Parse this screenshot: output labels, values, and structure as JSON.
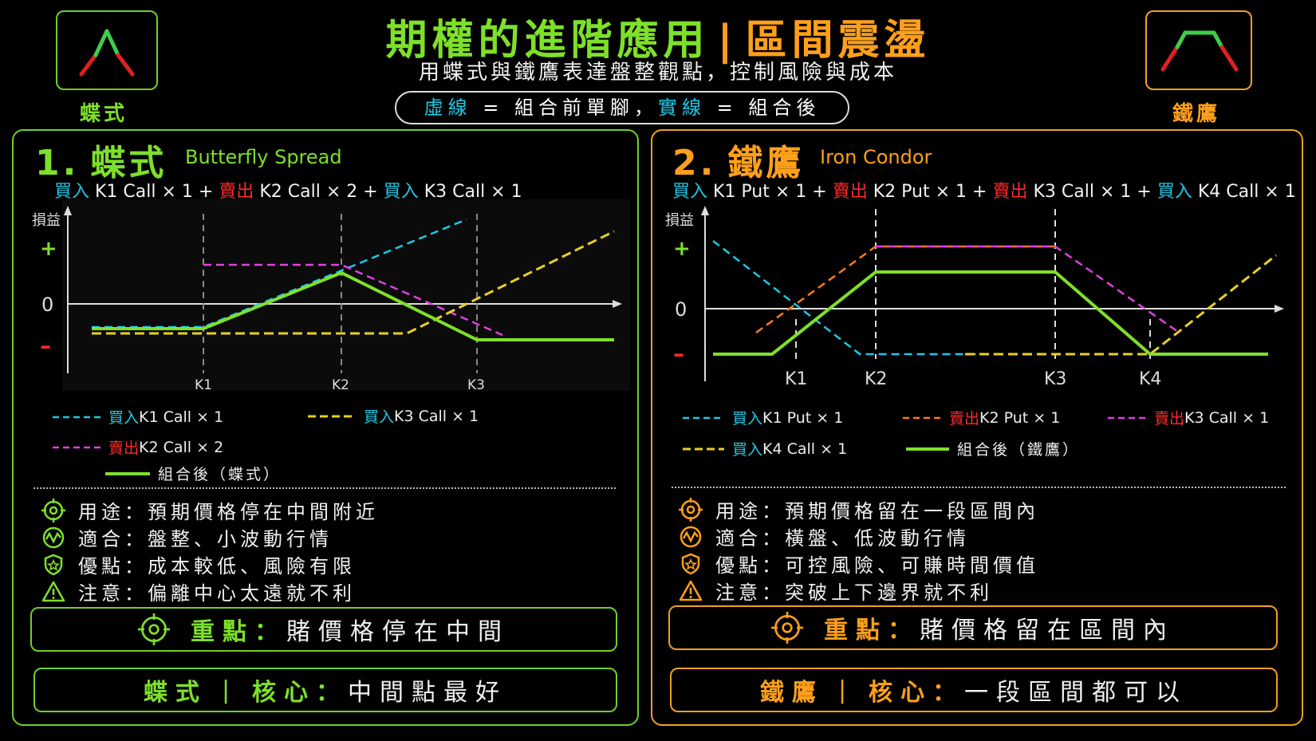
{
  "header": {
    "title_part1": "期權的進階應用",
    "title_sep": "|",
    "title_part2": "區間震盪",
    "subtitle": "用蝶式與鐵鷹表達盤整觀點，控制風險與成本",
    "legend_dashed": "虛線",
    "legend_mid": " = 組合前單腳，",
    "legend_solid": "實線",
    "legend_end": " = 組合後",
    "left_icon_label": "蝶式",
    "right_icon_label": "鐵鷹"
  },
  "colors": {
    "green": "#7ee02a",
    "orange": "#ff9f1a",
    "cyan": "#1ec8e6",
    "red": "#ff2a2a",
    "magenta": "#e040e0",
    "yellow": "#e8d020",
    "dash_orange": "#ff7a1a"
  },
  "butterfly": {
    "number": "1.",
    "title": "蝶式",
    "title_en": "Butterfly Spread",
    "formula": [
      {
        "action": "買入",
        "text": " K1 Call × 1 ",
        "op": "+"
      },
      {
        "action": "賣出",
        "text": " K2 Call × 2 ",
        "op": "+"
      },
      {
        "action": "買入",
        "text": " K3 Call × 1",
        "op": ""
      }
    ],
    "chart": {
      "y_label": "損益",
      "plus": "+",
      "zero": "0",
      "minus": "–",
      "strikes": [
        "K1",
        "K2",
        "K3"
      ]
    },
    "legend": [
      {
        "action": "買入",
        "text": " K1 Call × 1"
      },
      {
        "action": "買入",
        "text": " K3 Call × 1"
      },
      {
        "action": "賣出",
        "text": " K2 Call × 2"
      },
      {
        "action": "",
        "text": "組合後（蝶式）"
      }
    ],
    "info": [
      {
        "icon": "target-icon",
        "text": "用途：預期價格停在中間附近"
      },
      {
        "icon": "wave-icon",
        "text": "適合：盤整、小波動行情"
      },
      {
        "icon": "shield-icon",
        "text": "優點：成本較低、風險有限"
      },
      {
        "icon": "warning-icon",
        "text": "注意：偏離中心太遠就不利"
      }
    ],
    "key_label": "重點：",
    "key_text": "賭價格停在中間",
    "core_a": "蝶式",
    "core_sep": "|",
    "core_b": "核心：",
    "core_text": "中間點最好"
  },
  "condor": {
    "number": "2.",
    "title": "鐵鷹",
    "title_en": "Iron Condor",
    "formula": [
      {
        "action": "買入",
        "text": " K1 Put × 1 ",
        "op": "+"
      },
      {
        "action": "賣出",
        "text": " K2 Put × 1 ",
        "op": "+"
      },
      {
        "action": "賣出",
        "text": " K3 Call × 1 ",
        "op": "+"
      },
      {
        "action": "買入",
        "text": " K4 Call × 1",
        "op": ""
      }
    ],
    "chart": {
      "y_label": "損益",
      "plus": "+",
      "zero": "0",
      "minus": "–",
      "strikes": [
        "K1",
        "K2",
        "K3",
        "K4"
      ]
    },
    "legend": [
      {
        "action": "買入",
        "text": " K1 Put × 1"
      },
      {
        "action": "賣出",
        "text": " K2 Put × 1"
      },
      {
        "action": "賣出",
        "text": " K3 Call × 1"
      },
      {
        "action": "買入",
        "text": " K4 Call × 1"
      },
      {
        "action": "",
        "text": "組合後（鐵鷹）"
      }
    ],
    "info": [
      {
        "icon": "target-icon",
        "text": "用途：預期價格留在一段區間內"
      },
      {
        "icon": "wave-icon",
        "text": "適合：橫盤、低波動行情"
      },
      {
        "icon": "shield-icon",
        "text": "優點：可控風險、可賺時間價值"
      },
      {
        "icon": "warning-icon",
        "text": "注意：突破上下邊界就不利"
      }
    ],
    "key_label": "重點：",
    "key_text": "賭價格留在區間內",
    "core_a": "鐵鷹",
    "core_sep": "|",
    "core_b": "核心：",
    "core_text": "一段區間都可以"
  }
}
